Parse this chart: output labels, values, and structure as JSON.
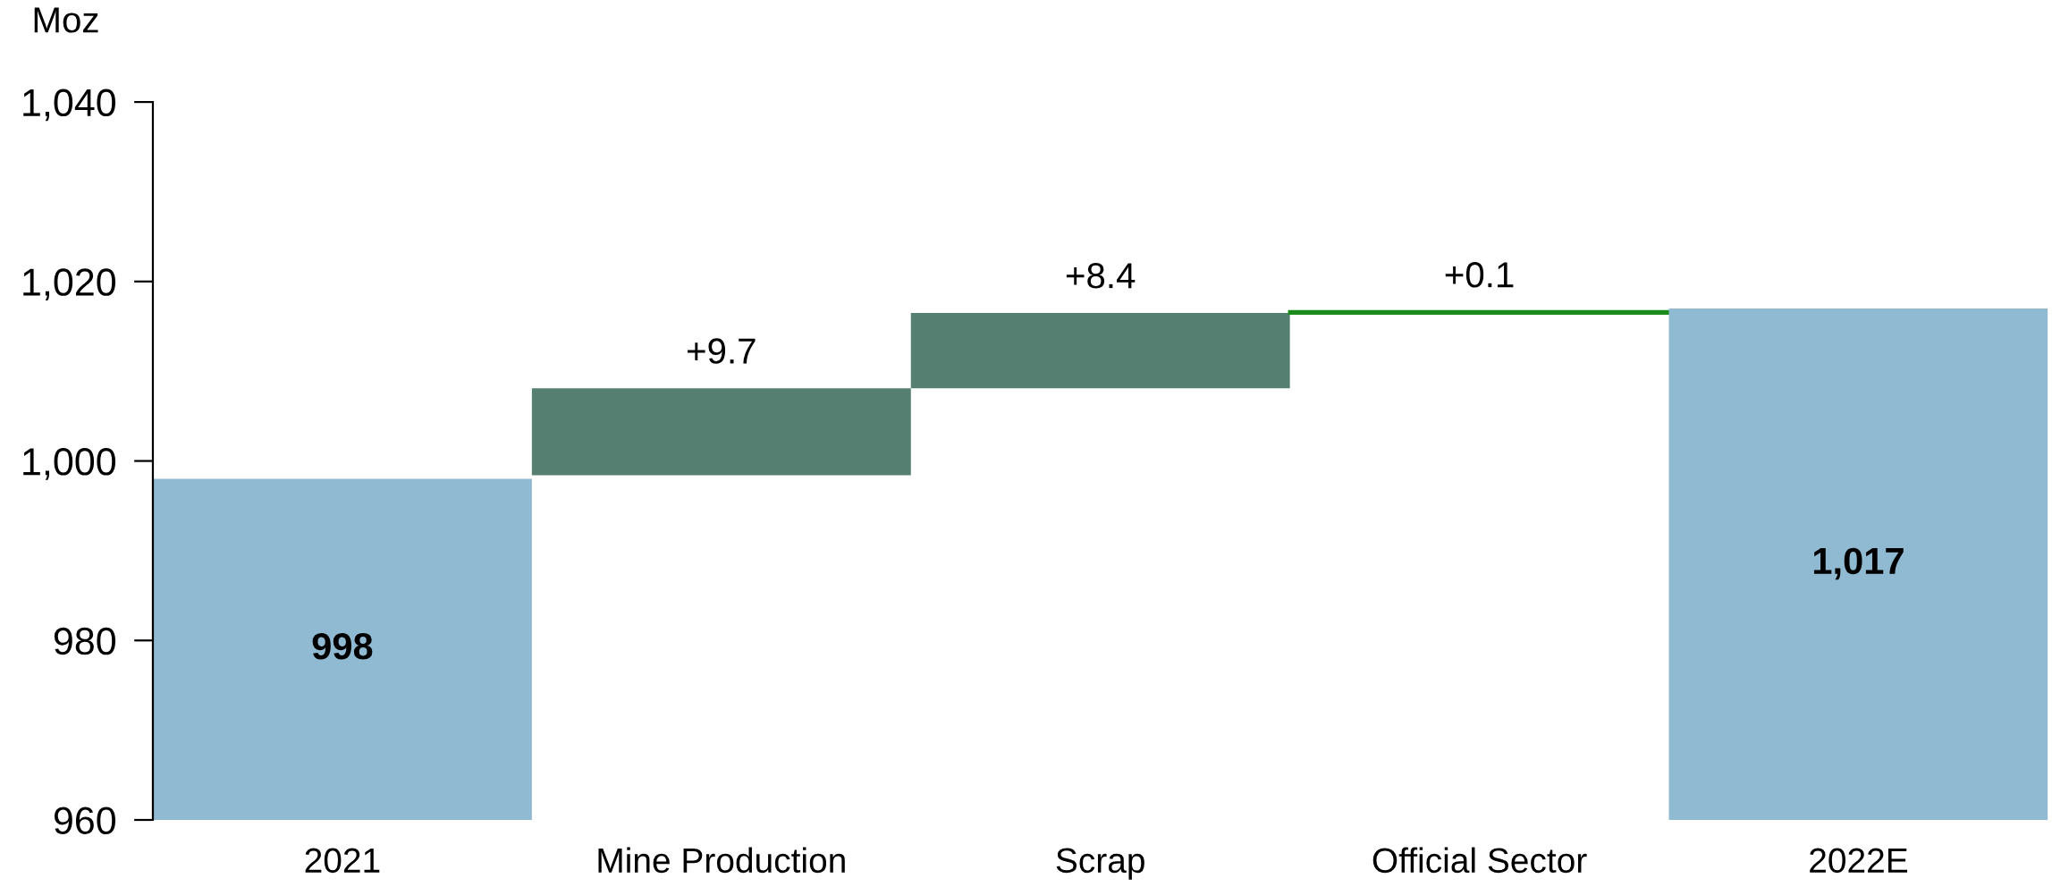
{
  "chart_data": {
    "type": "bar",
    "ylabel": "Moz",
    "categories": [
      "2021",
      "Mine Production",
      "Scrap",
      "Official Sector",
      "2022E"
    ],
    "values": [
      998,
      9.7,
      8.4,
      0.1,
      1017
    ],
    "base": [
      null,
      998.4,
      1008.1,
      1016.5,
      null
    ],
    "colors": [
      "#8fbad1",
      "#557f71",
      "#557f71",
      "#1a8a1a",
      "#8fbad1"
    ],
    "value_labels": [
      "998",
      "+9.7",
      "+8.4",
      "+0.1",
      "1,017"
    ],
    "ylim": [
      960,
      1040
    ],
    "yticks": [
      960,
      980,
      {
        "value": 1000,
        "label": "1,000"
      },
      {
        "value": 1020,
        "label": "1,020"
      },
      {
        "value": 1040,
        "label": "1,040"
      }
    ]
  }
}
